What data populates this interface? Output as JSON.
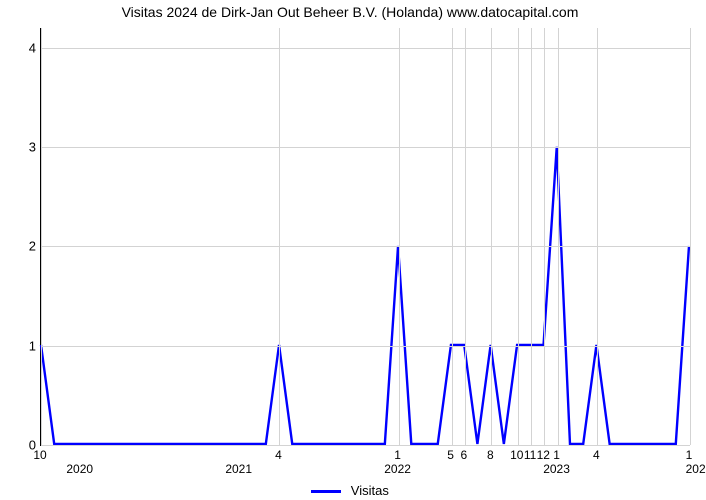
{
  "chart": {
    "type": "line",
    "title": "Visitas 2024 de Dirk-Jan Out Beheer B.V. (Holanda) www.datocapital.com",
    "title_fontsize": 14,
    "background_color": "#ffffff",
    "grid_color": "#d3d3d3",
    "axis_color": "#000000",
    "line_color": "#0000ff",
    "line_width": 2.4,
    "ylim": [
      0,
      4.2
    ],
    "y_ticks": [
      0,
      1,
      2,
      3,
      4
    ],
    "x_domain": [
      0,
      49
    ],
    "x_month_ticks": [
      {
        "pos": 0,
        "label": "10"
      },
      {
        "pos": 18,
        "label": "4"
      },
      {
        "pos": 27,
        "label": "1"
      },
      {
        "pos": 31,
        "label": "5"
      },
      {
        "pos": 32,
        "label": "6"
      },
      {
        "pos": 34,
        "label": "8"
      },
      {
        "pos": 36,
        "label": "10"
      },
      {
        "pos": 37,
        "label": "11"
      },
      {
        "pos": 38,
        "label": "12"
      },
      {
        "pos": 39,
        "label": "1"
      },
      {
        "pos": 42,
        "label": "4"
      },
      {
        "pos": 49,
        "label": "1"
      }
    ],
    "x_year_ticks": [
      {
        "pos": 3,
        "label": "2020"
      },
      {
        "pos": 15,
        "label": "2021"
      },
      {
        "pos": 27,
        "label": "2022"
      },
      {
        "pos": 39,
        "label": "2023"
      },
      {
        "pos": 49.5,
        "label": "202"
      }
    ],
    "points": [
      [
        0,
        1
      ],
      [
        1,
        0
      ],
      [
        2,
        0
      ],
      [
        3,
        0
      ],
      [
        4,
        0
      ],
      [
        5,
        0
      ],
      [
        6,
        0
      ],
      [
        7,
        0
      ],
      [
        8,
        0
      ],
      [
        9,
        0
      ],
      [
        10,
        0
      ],
      [
        11,
        0
      ],
      [
        12,
        0
      ],
      [
        13,
        0
      ],
      [
        14,
        0
      ],
      [
        15,
        0
      ],
      [
        16,
        0
      ],
      [
        17,
        0
      ],
      [
        18,
        1
      ],
      [
        19,
        0
      ],
      [
        20,
        0
      ],
      [
        21,
        0
      ],
      [
        22,
        0
      ],
      [
        23,
        0
      ],
      [
        24,
        0
      ],
      [
        25,
        0
      ],
      [
        26,
        0
      ],
      [
        27,
        2
      ],
      [
        28,
        0
      ],
      [
        29,
        0
      ],
      [
        30,
        0
      ],
      [
        31,
        1
      ],
      [
        32,
        1
      ],
      [
        33,
        0
      ],
      [
        34,
        1
      ],
      [
        35,
        0
      ],
      [
        36,
        1
      ],
      [
        37,
        1
      ],
      [
        38,
        1
      ],
      [
        39,
        3
      ],
      [
        40,
        0
      ],
      [
        41,
        0
      ],
      [
        42,
        1
      ],
      [
        43,
        0
      ],
      [
        44,
        0
      ],
      [
        45,
        0
      ],
      [
        46,
        0
      ],
      [
        47,
        0
      ],
      [
        48,
        0
      ],
      [
        49,
        2
      ]
    ],
    "legend": {
      "label": "Visitas",
      "color": "#0000ff"
    }
  }
}
